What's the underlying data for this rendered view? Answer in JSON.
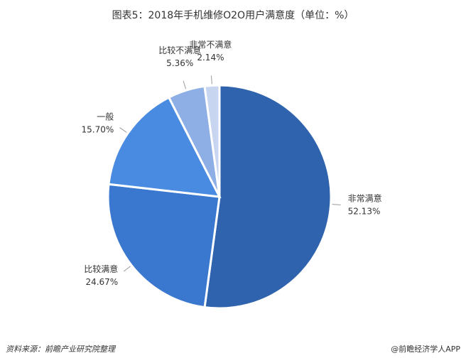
{
  "chart_data": {
    "type": "pie",
    "title": "图表5：2018年手机维修O2O用户满意度（单位：%）",
    "categories": [
      "非常满意",
      "比较满意",
      "一般",
      "比较不满意",
      "非常不满意"
    ],
    "values": [
      52.13,
      24.67,
      15.7,
      5.36,
      2.14
    ],
    "value_labels": [
      "52.13%",
      "24.67%",
      "15.70%",
      "5.36%",
      "2.14%"
    ],
    "colors": [
      "#2f63ad",
      "#3a78d0",
      "#4a8be2",
      "#8eaee6",
      "#c7d5f0"
    ],
    "source": "资料来源：前瞻产业研究院整理",
    "credit": "@前瞻经济学人APP"
  }
}
